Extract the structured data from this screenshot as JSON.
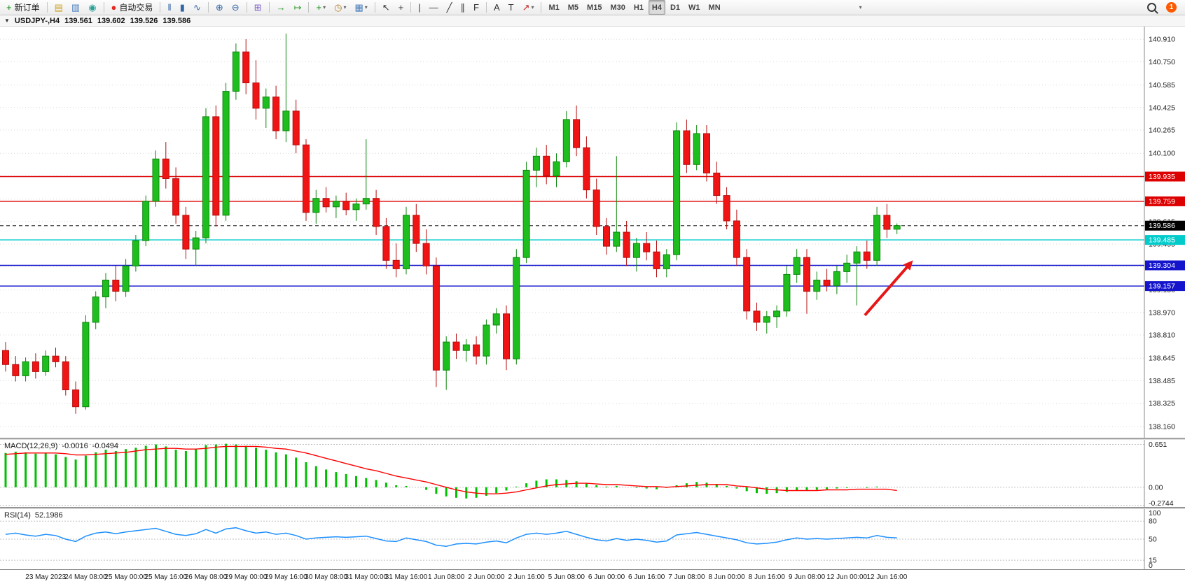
{
  "toolbar": {
    "overflow_glyph": "▾",
    "notification_count": "1",
    "groups": [
      {
        "items": [
          {
            "name": "new-order",
            "glyph": "+",
            "color": "#0a8a0a",
            "label": "新订单"
          }
        ]
      },
      {
        "items": [
          {
            "name": "new-chart",
            "glyph": "▤",
            "color": "#c9a227"
          },
          {
            "name": "profiles",
            "glyph": "▥",
            "color": "#4a7ebb"
          },
          {
            "name": "market-watch",
            "glyph": "◉",
            "color": "#2aa198"
          }
        ]
      },
      {
        "items": [
          {
            "name": "autotrading",
            "glyph": "●",
            "color": "#e3291e",
            "label": "自动交易"
          }
        ]
      },
      {
        "items": [
          {
            "name": "bar-chart",
            "glyph": "‖",
            "color": "#3465a4"
          },
          {
            "name": "candlestick-chart",
            "glyph": "▮",
            "color": "#3465a4"
          },
          {
            "name": "line-chart",
            "glyph": "∿",
            "color": "#3465a4"
          }
        ]
      },
      {
        "items": [
          {
            "name": "zoom-in",
            "glyph": "⊕",
            "color": "#3465a4"
          },
          {
            "name": "zoom-out",
            "glyph": "⊖",
            "color": "#3465a4"
          }
        ]
      },
      {
        "items": [
          {
            "name": "tile-windows",
            "glyph": "⊞",
            "color": "#7a5cc5"
          }
        ]
      },
      {
        "items": [
          {
            "name": "auto-scroll",
            "glyph": "→",
            "color": "#2d9a2d"
          },
          {
            "name": "chart-shift",
            "glyph": "↦",
            "color": "#2d9a2d"
          }
        ]
      },
      {
        "items": [
          {
            "name": "indicators",
            "glyph": "+",
            "color": "#0a8a0a",
            "dropdown": true
          },
          {
            "name": "periods",
            "glyph": "◷",
            "color": "#b07a1f",
            "dropdown": true
          },
          {
            "name": "templates",
            "glyph": "▦",
            "color": "#4a7ebb",
            "dropdown": true
          }
        ]
      },
      {
        "items": [
          {
            "name": "cursor",
            "glyph": "↖",
            "color": "#333333"
          },
          {
            "name": "crosshair",
            "glyph": "+",
            "color": "#333333"
          }
        ]
      },
      {
        "items": [
          {
            "name": "vertical-line",
            "glyph": "|",
            "color": "#333333"
          },
          {
            "name": "horizontal-line",
            "glyph": "—",
            "color": "#333333"
          },
          {
            "name": "trendline",
            "glyph": "╱",
            "color": "#333333"
          },
          {
            "name": "equidistant-channel",
            "glyph": "∥",
            "color": "#333333"
          },
          {
            "name": "fibonacci",
            "glyph": "F",
            "color": "#333333"
          }
        ]
      },
      {
        "items": [
          {
            "name": "text",
            "glyph": "A",
            "color": "#333333"
          },
          {
            "name": "text-label",
            "glyph": "T",
            "color": "#333333"
          },
          {
            "name": "arrows",
            "glyph": "↗",
            "color": "#c22222",
            "dropdown": true
          }
        ]
      },
      {
        "items": [
          {
            "name": "timeframe-m1",
            "text": "M1"
          },
          {
            "name": "timeframe-m5",
            "text": "M5"
          },
          {
            "name": "timeframe-m15",
            "text": "M15"
          },
          {
            "name": "timeframe-m30",
            "text": "M30"
          },
          {
            "name": "timeframe-h1",
            "text": "H1"
          },
          {
            "name": "timeframe-h4",
            "text": "H4",
            "active": true
          },
          {
            "name": "timeframe-d1",
            "text": "D1"
          },
          {
            "name": "timeframe-w1",
            "text": "W1"
          },
          {
            "name": "timeframe-mn",
            "text": "MN"
          }
        ]
      }
    ]
  },
  "chart_header": {
    "collapse_glyph": "▼",
    "symbol_period": "USDJPY-,H4",
    "open": "139.561",
    "high": "139.602",
    "low": "139.526",
    "close": "139.586"
  },
  "panels": {
    "macd": {
      "title": "MACD(12,26,9)",
      "value_main": "-0.0016",
      "value_signal": "-0.0494"
    },
    "rsi": {
      "title": "RSI(14)",
      "value": "52.1986"
    }
  },
  "chart_data": {
    "type": "candlestick",
    "symbol": "USDJPY-",
    "timeframe": "H4",
    "background": "#ffffff",
    "grid": true,
    "price_max": 141.0,
    "price_min": 138.08,
    "up_color": "#1fbe1f",
    "up_border": "#0c860c",
    "down_color": "#f01414",
    "down_border": "#b50e0e",
    "price_ticks": [
      "140.910",
      "140.750",
      "140.585",
      "140.425",
      "140.265",
      "140.100",
      "139.940",
      "139.775",
      "139.615",
      "139.455",
      "139.295",
      "139.130",
      "138.970",
      "138.810",
      "138.645",
      "138.485",
      "138.325",
      "138.160"
    ],
    "time_labels": [
      "23 May 2023",
      "24 May 08:00",
      "25 May 00:00",
      "25 May 16:00",
      "26 May 08:00",
      "29 May 00:00",
      "29 May 16:00",
      "30 May 08:00",
      "31 May 00:00",
      "31 May 16:00",
      "1 Jun 08:00",
      "2 Jun 00:00",
      "2 Jun 16:00",
      "5 Jun 08:00",
      "6 Jun 00:00",
      "6 Jun 16:00",
      "7 Jun 08:00",
      "8 Jun 00:00",
      "8 Jun 16:00",
      "9 Jun 08:00",
      "12 Jun 00:00",
      "12 Jun 16:00"
    ],
    "hlines": [
      {
        "price": 139.935,
        "color": "#dd0000",
        "style": "solid",
        "label": "139.935"
      },
      {
        "price": 139.759,
        "color": "#dd0000",
        "style": "solid",
        "label": "139.759"
      },
      {
        "price": 139.586,
        "color": "#555555",
        "style": "dashed",
        "tag": "#000000",
        "label": "139.586"
      },
      {
        "price": 139.485,
        "color": "#00cccc",
        "style": "solid",
        "label": "139.485"
      },
      {
        "price": 139.304,
        "color": "#1414cc",
        "style": "solid",
        "label": "139.304"
      },
      {
        "price": 139.157,
        "color": "#1414cc",
        "style": "solid",
        "label": "139.157"
      }
    ],
    "arrow": {
      "color": "#e81717",
      "from": {
        "index": 85.8,
        "price": 138.95
      },
      "to": {
        "index": 90.6,
        "price": 139.34
      }
    },
    "candles": [
      [
        138.7,
        138.76,
        138.55,
        138.6
      ],
      [
        138.6,
        138.66,
        138.48,
        138.52
      ],
      [
        138.52,
        138.65,
        138.48,
        138.62
      ],
      [
        138.62,
        138.68,
        138.5,
        138.55
      ],
      [
        138.55,
        138.7,
        138.52,
        138.66
      ],
      [
        138.66,
        138.72,
        138.58,
        138.62
      ],
      [
        138.62,
        138.66,
        138.38,
        138.42
      ],
      [
        138.42,
        138.48,
        138.25,
        138.3
      ],
      [
        138.3,
        138.95,
        138.28,
        138.9
      ],
      [
        138.9,
        139.12,
        138.85,
        139.08
      ],
      [
        139.08,
        139.25,
        139.0,
        139.2
      ],
      [
        139.2,
        139.3,
        139.05,
        139.12
      ],
      [
        139.12,
        139.35,
        139.08,
        139.3
      ],
      [
        139.3,
        139.52,
        139.26,
        139.48
      ],
      [
        139.48,
        139.8,
        139.44,
        139.76
      ],
      [
        139.76,
        140.12,
        139.72,
        140.06
      ],
      [
        140.06,
        140.18,
        139.85,
        139.92
      ],
      [
        139.92,
        140.0,
        139.6,
        139.66
      ],
      [
        139.66,
        139.72,
        139.35,
        139.42
      ],
      [
        139.42,
        139.55,
        139.3,
        139.5
      ],
      [
        139.5,
        140.42,
        139.46,
        140.36
      ],
      [
        140.36,
        140.44,
        139.58,
        139.66
      ],
      [
        139.66,
        140.6,
        139.62,
        140.54
      ],
      [
        140.54,
        140.88,
        140.48,
        140.82
      ],
      [
        140.82,
        140.91,
        140.52,
        140.6
      ],
      [
        140.6,
        140.76,
        140.34,
        140.42
      ],
      [
        140.42,
        140.56,
        140.28,
        140.5
      ],
      [
        140.5,
        140.58,
        140.2,
        140.26
      ],
      [
        140.26,
        140.95,
        140.18,
        140.4
      ],
      [
        140.4,
        140.48,
        140.1,
        140.16
      ],
      [
        140.16,
        140.2,
        139.62,
        139.68
      ],
      [
        139.68,
        139.84,
        139.6,
        139.78
      ],
      [
        139.78,
        139.86,
        139.68,
        139.72
      ],
      [
        139.72,
        139.8,
        139.64,
        139.76
      ],
      [
        139.76,
        139.82,
        139.66,
        139.7
      ],
      [
        139.7,
        139.78,
        139.62,
        139.74
      ],
      [
        139.74,
        140.2,
        139.7,
        139.78
      ],
      [
        139.78,
        139.84,
        139.52,
        139.58
      ],
      [
        139.58,
        139.64,
        139.28,
        139.34
      ],
      [
        139.34,
        139.46,
        139.22,
        139.28
      ],
      [
        139.28,
        139.72,
        139.24,
        139.66
      ],
      [
        139.66,
        139.74,
        139.4,
        139.46
      ],
      [
        139.46,
        139.56,
        139.24,
        139.3
      ],
      [
        139.3,
        139.36,
        138.44,
        138.56
      ],
      [
        138.56,
        138.8,
        138.42,
        138.76
      ],
      [
        138.76,
        138.82,
        138.64,
        138.7
      ],
      [
        138.7,
        138.78,
        138.62,
        138.74
      ],
      [
        138.74,
        138.8,
        138.6,
        138.66
      ],
      [
        138.66,
        138.92,
        138.6,
        138.88
      ],
      [
        138.88,
        139.0,
        138.82,
        138.96
      ],
      [
        138.96,
        139.02,
        138.56,
        138.64
      ],
      [
        138.64,
        139.42,
        138.6,
        139.36
      ],
      [
        139.36,
        140.04,
        139.32,
        139.98
      ],
      [
        139.98,
        140.14,
        139.86,
        140.08
      ],
      [
        140.08,
        140.16,
        139.88,
        139.94
      ],
      [
        139.94,
        140.1,
        139.86,
        140.04
      ],
      [
        140.04,
        140.4,
        140.0,
        140.34
      ],
      [
        140.34,
        140.44,
        140.08,
        140.14
      ],
      [
        140.14,
        140.22,
        139.78,
        139.84
      ],
      [
        139.84,
        139.92,
        139.52,
        139.58
      ],
      [
        139.58,
        139.64,
        139.38,
        139.44
      ],
      [
        139.44,
        140.08,
        139.4,
        139.54
      ],
      [
        139.54,
        139.62,
        139.3,
        139.36
      ],
      [
        139.36,
        139.5,
        139.26,
        139.46
      ],
      [
        139.46,
        139.54,
        139.34,
        139.4
      ],
      [
        139.4,
        139.48,
        139.22,
        139.28
      ],
      [
        139.28,
        139.42,
        139.22,
        139.38
      ],
      [
        139.38,
        140.32,
        139.34,
        140.26
      ],
      [
        140.26,
        140.34,
        139.96,
        140.02
      ],
      [
        140.02,
        140.3,
        139.98,
        140.24
      ],
      [
        140.24,
        140.3,
        139.9,
        139.96
      ],
      [
        139.96,
        140.04,
        139.74,
        139.8
      ],
      [
        139.8,
        139.86,
        139.56,
        139.62
      ],
      [
        139.62,
        139.7,
        139.3,
        139.36
      ],
      [
        139.36,
        139.42,
        138.92,
        138.98
      ],
      [
        138.98,
        139.04,
        138.84,
        138.9
      ],
      [
        138.9,
        138.98,
        138.82,
        138.94
      ],
      [
        138.94,
        139.02,
        138.86,
        138.98
      ],
      [
        138.98,
        139.3,
        138.94,
        139.24
      ],
      [
        139.24,
        139.42,
        139.18,
        139.36
      ],
      [
        139.36,
        139.42,
        138.96,
        139.12
      ],
      [
        139.12,
        139.26,
        139.06,
        139.2
      ],
      [
        139.2,
        139.28,
        139.12,
        139.16
      ],
      [
        139.16,
        139.3,
        139.1,
        139.26
      ],
      [
        139.26,
        139.38,
        139.18,
        139.32
      ],
      [
        139.32,
        139.44,
        139.02,
        139.4
      ],
      [
        139.4,
        139.48,
        139.28,
        139.34
      ],
      [
        139.34,
        139.72,
        139.3,
        139.66
      ],
      [
        139.66,
        139.74,
        139.5,
        139.56
      ],
      [
        139.561,
        139.602,
        139.526,
        139.586
      ]
    ],
    "macd": {
      "params": "12,26,9",
      "hist_color": "#00c000",
      "signal_color": "#ff0000",
      "max": 0.72,
      "min": -0.3,
      "ticks": [
        {
          "t": "0.651",
          "v": 0.651
        },
        {
          "t": "0.00",
          "v": 0
        },
        {
          "t": "-0.2744",
          "v": -0.2744
        }
      ],
      "main": [
        0.52,
        0.54,
        0.53,
        0.51,
        0.52,
        0.5,
        0.46,
        0.42,
        0.48,
        0.53,
        0.57,
        0.55,
        0.58,
        0.6,
        0.63,
        0.65,
        0.62,
        0.57,
        0.55,
        0.58,
        0.64,
        0.65,
        0.66,
        0.65,
        0.63,
        0.6,
        0.57,
        0.53,
        0.5,
        0.45,
        0.38,
        0.32,
        0.27,
        0.23,
        0.2,
        0.17,
        0.14,
        0.11,
        0.07,
        0.03,
        0.02,
        0.0,
        -0.04,
        -0.1,
        -0.14,
        -0.16,
        -0.17,
        -0.16,
        -0.13,
        -0.09,
        -0.05,
        0.01,
        0.06,
        0.1,
        0.12,
        0.12,
        0.11,
        0.09,
        0.06,
        0.03,
        0.01,
        0.02,
        0.0,
        -0.01,
        -0.02,
        -0.03,
        -0.01,
        0.03,
        0.06,
        0.08,
        0.07,
        0.05,
        0.02,
        -0.02,
        -0.06,
        -0.09,
        -0.1,
        -0.09,
        -0.07,
        -0.05,
        -0.05,
        -0.04,
        -0.03,
        -0.02,
        -0.01,
        0.0,
        -0.01,
        0.01,
        0.0,
        -0.0016
      ],
      "signal": [
        0.5,
        0.51,
        0.52,
        0.52,
        0.52,
        0.52,
        0.51,
        0.49,
        0.49,
        0.5,
        0.51,
        0.52,
        0.53,
        0.55,
        0.57,
        0.58,
        0.59,
        0.59,
        0.58,
        0.58,
        0.59,
        0.61,
        0.62,
        0.62,
        0.62,
        0.62,
        0.61,
        0.59,
        0.58,
        0.55,
        0.52,
        0.48,
        0.44,
        0.4,
        0.36,
        0.32,
        0.28,
        0.25,
        0.21,
        0.17,
        0.14,
        0.11,
        0.08,
        0.04,
        0.0,
        -0.04,
        -0.07,
        -0.09,
        -0.1,
        -0.1,
        -0.09,
        -0.07,
        -0.04,
        -0.01,
        0.02,
        0.04,
        0.05,
        0.06,
        0.06,
        0.05,
        0.04,
        0.04,
        0.03,
        0.02,
        0.01,
        0.01,
        0.0,
        0.01,
        0.02,
        0.03,
        0.04,
        0.04,
        0.04,
        0.02,
        0.01,
        -0.01,
        -0.03,
        -0.04,
        -0.05,
        -0.05,
        -0.05,
        -0.05,
        -0.04,
        -0.04,
        -0.04,
        -0.03,
        -0.03,
        -0.03,
        -0.03,
        -0.0494
      ]
    },
    "rsi": {
      "params": "14",
      "color": "#1e90ff",
      "max": 100,
      "min": 0,
      "levels": [
        80,
        50,
        15
      ],
      "ticks": [
        {
          "t": "100",
          "v": 100
        },
        {
          "t": "80",
          "v": 80
        },
        {
          "t": "50",
          "v": 50
        },
        {
          "t": "15",
          "v": 15
        },
        {
          "t": "0",
          "v": 0
        }
      ],
      "values": [
        58,
        60,
        57,
        55,
        58,
        56,
        50,
        46,
        55,
        60,
        62,
        59,
        62,
        64,
        66,
        68,
        63,
        58,
        56,
        59,
        66,
        60,
        67,
        69,
        64,
        60,
        62,
        58,
        60,
        56,
        50,
        52,
        53,
        54,
        53,
        54,
        55,
        51,
        47,
        46,
        52,
        49,
        46,
        40,
        38,
        42,
        43,
        42,
        45,
        47,
        44,
        52,
        58,
        60,
        58,
        60,
        63,
        58,
        53,
        49,
        47,
        51,
        48,
        50,
        48,
        45,
        47,
        57,
        59,
        61,
        58,
        55,
        52,
        49,
        44,
        42,
        43,
        45,
        49,
        52,
        50,
        51,
        50,
        51,
        52,
        53,
        52,
        56,
        53,
        52.1986
      ]
    }
  }
}
